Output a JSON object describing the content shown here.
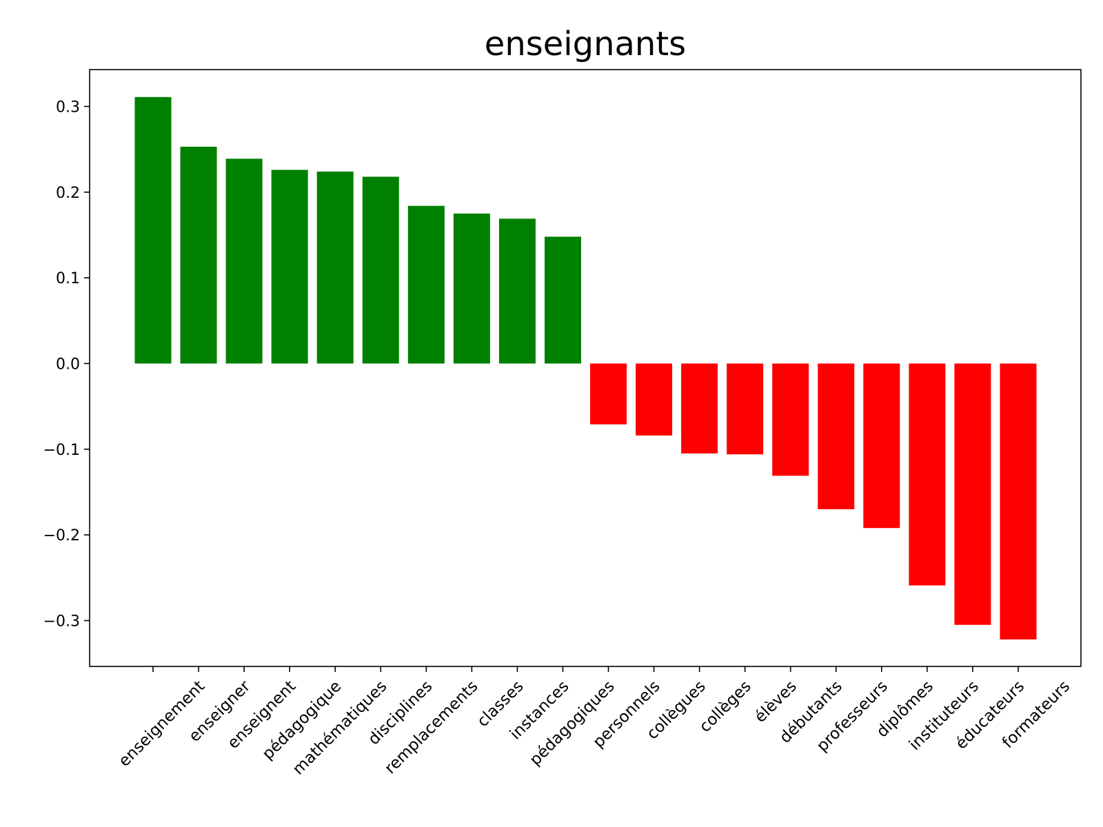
{
  "chart_data": {
    "type": "bar",
    "title": "enseignants",
    "xlabel": "",
    "ylabel": "",
    "categories": [
      "enseignement",
      "enseigner",
      "enseignent",
      "pédagogique",
      "mathématiques",
      "disciplines",
      "remplacements",
      "classes",
      "instances",
      "pédagogiques",
      "personnels",
      "collègues",
      "collèges",
      "élèves",
      "débutants",
      "professeurs",
      "diplômes",
      "instituteurs",
      "éducateurs",
      "formateurs"
    ],
    "values": [
      0.311,
      0.253,
      0.239,
      0.226,
      0.224,
      0.218,
      0.184,
      0.175,
      0.169,
      0.148,
      -0.071,
      -0.084,
      -0.105,
      -0.106,
      -0.131,
      -0.17,
      -0.192,
      -0.259,
      -0.305,
      -0.322
    ],
    "ylim": [
      -0.3535,
      0.343
    ],
    "yticks": [
      0.3,
      0.2,
      0.1,
      0.0,
      -0.1,
      -0.2,
      -0.3
    ],
    "ytick_labels": [
      "0.3",
      "0.2",
      "0.1",
      "0.0",
      "−0.1",
      "−0.2",
      "−0.3"
    ],
    "colors": {
      "positive": "#008000",
      "negative": "#ff0000"
    },
    "grid": false,
    "legend": "none"
  }
}
